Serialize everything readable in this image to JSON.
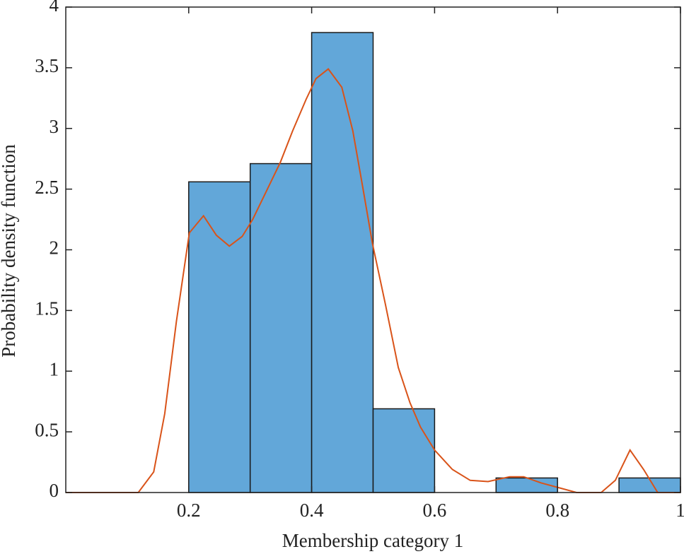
{
  "chart_data": {
    "type": "histogram",
    "xlabel": "Membership category 1",
    "ylabel": "Probability density function",
    "bins": [
      0.2,
      0.3,
      0.4,
      0.5,
      0.6,
      0.7,
      0.8,
      0.9,
      1.0
    ],
    "values": [
      2.56,
      2.71,
      3.79,
      0.69,
      0,
      0.12,
      0,
      0.12
    ],
    "color": "#62a7d9",
    "edgecolor": "#1a1a1a",
    "density_curve": {
      "color": "#d95319",
      "x": [
        0,
        0.118,
        0.143,
        0.161,
        0.18,
        0.201,
        0.224,
        0.245,
        0.266,
        0.287,
        0.304,
        0.327,
        0.349,
        0.369,
        0.391,
        0.407,
        0.427,
        0.449,
        0.467,
        0.483,
        0.499,
        0.52,
        0.541,
        0.56,
        0.577,
        0.6,
        0.629,
        0.658,
        0.687,
        0.722,
        0.745,
        0.773,
        0.802,
        0.831,
        0.871,
        0.894,
        0.918,
        0.94,
        0.963,
        1
      ],
      "values": [
        0,
        0,
        0.17,
        0.65,
        1.41,
        2.14,
        2.28,
        2.12,
        2.03,
        2.11,
        2.25,
        2.49,
        2.72,
        2.98,
        3.24,
        3.41,
        3.49,
        3.34,
        2.98,
        2.52,
        2.05,
        1.55,
        1.03,
        0.74,
        0.54,
        0.35,
        0.19,
        0.1,
        0.09,
        0.13,
        0.13,
        0.08,
        0.04,
        0,
        0,
        0.1,
        0.35,
        0.19,
        0,
        0
      ]
    },
    "xlim": [
      0,
      1
    ],
    "xticks": [
      0.2,
      0.4,
      0.6,
      0.8,
      1
    ],
    "ylim": [
      0,
      4
    ],
    "yticks": [
      0,
      0.5,
      1,
      1.5,
      2,
      2.5,
      3,
      3.5,
      4
    ]
  }
}
